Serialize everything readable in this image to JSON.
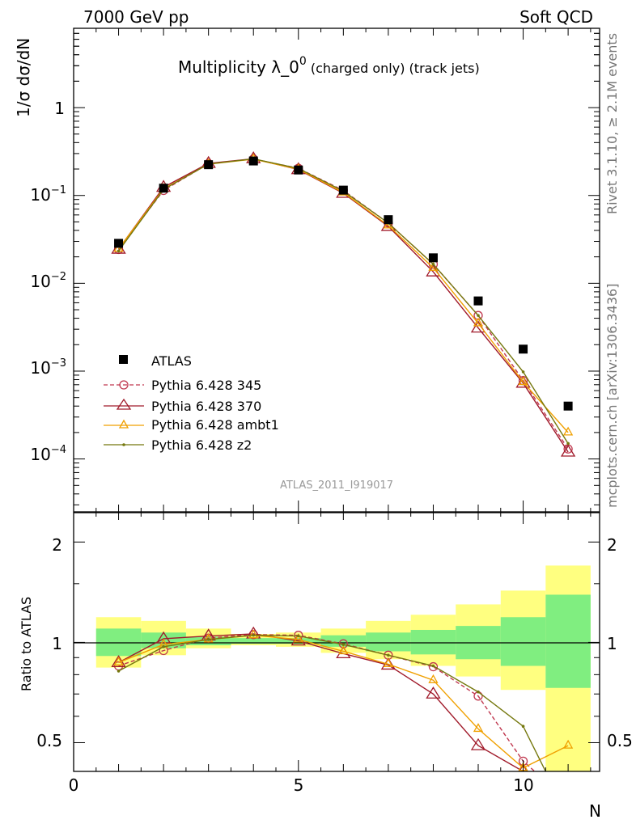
{
  "header": {
    "left": "7000 GeV pp",
    "right": "Soft QCD"
  },
  "title": {
    "main": "Multiplicity λ_0",
    "sup": "0",
    "sub": " (charged only) (track jets)"
  },
  "side_labels": {
    "rivet": "Rivet 3.1.10, ≥ 2.1M events",
    "mcplots": "mcplots.cern.ch [arXiv:1306.3436]"
  },
  "watermark": "ATLAS_2011_I919017",
  "legend_entries": [
    "ATLAS",
    "Pythia 6.428 345",
    "Pythia 6.428 370",
    "Pythia 6.428 ambt1",
    "Pythia 6.428 z2"
  ],
  "axis_labels": {
    "x": "N",
    "y_top": "1/σ dσ/dN",
    "y_bottom": "Ratio to ATLAS"
  },
  "x_tick_labels": [
    "0",
    "5",
    "10"
  ],
  "y_top_tick_labels": [
    {
      "base": "1",
      "exp": ""
    },
    {
      "base": "10",
      "exp": "−1"
    },
    {
      "base": "10",
      "exp": "−2"
    },
    {
      "base": "10",
      "exp": "−3"
    },
    {
      "base": "10",
      "exp": "−4"
    }
  ],
  "y_bottom_tick_labels": [
    "2",
    "1",
    "0.5"
  ],
  "chart_data": {
    "type": "line",
    "x_range": [
      0,
      11.7
    ],
    "top_panel": {
      "y_scale": "log",
      "y_range": [
        2.5e-05,
        8
      ],
      "atlas": {
        "x": [
          1,
          2,
          3,
          4,
          5,
          6,
          7,
          8,
          9,
          10,
          11
        ],
        "y": [
          0.0285,
          0.121,
          0.224,
          0.247,
          0.195,
          0.115,
          0.053,
          0.0195,
          0.0063,
          0.00178,
          0.0004
        ]
      },
      "series": [
        {
          "name": "Pythia 6.428 345",
          "color": "#c0384f",
          "marker": "circle",
          "dash": "dashed",
          "x": [
            1,
            2,
            3,
            4,
            5,
            6,
            7,
            8,
            9,
            10,
            11
          ],
          "y": [
            0.0243,
            0.114,
            0.23,
            0.26,
            0.204,
            0.114,
            0.0485,
            0.0165,
            0.0043,
            0.00078,
            0.00013
          ]
        },
        {
          "name": "Pythia 6.428 370",
          "color": "#a01a2a",
          "marker": "triangle",
          "dash": "solid",
          "x": [
            1,
            2,
            3,
            4,
            5,
            6,
            7,
            8,
            9,
            10,
            11
          ],
          "y": [
            0.0245,
            0.124,
            0.232,
            0.262,
            0.197,
            0.106,
            0.0445,
            0.0135,
            0.0031,
            0.00073,
            0.00012
          ]
        },
        {
          "name": "Pythia 6.428 ambt1",
          "color": "#f0a000",
          "marker": "triangle-small",
          "dash": "solid",
          "x": [
            1,
            2,
            3,
            4,
            5,
            6,
            7,
            8,
            9,
            10,
            11
          ],
          "y": [
            0.0247,
            0.119,
            0.227,
            0.259,
            0.199,
            0.108,
            0.0455,
            0.015,
            0.0035,
            0.00075,
            0.0002
          ]
        },
        {
          "name": "Pythia 6.428 z2",
          "color": "#75780e",
          "marker": "dot",
          "dash": "solid",
          "x": [
            1,
            2,
            3,
            4,
            5,
            6,
            7,
            8,
            9,
            10,
            11
          ],
          "y": [
            0.0233,
            0.117,
            0.228,
            0.261,
            0.203,
            0.112,
            0.0485,
            0.0165,
            0.0043,
            0.00098,
            0.00015
          ]
        }
      ]
    },
    "bottom_panel": {
      "y_scale": "log",
      "y_range": [
        0.41,
        2.45
      ],
      "reference_line": 1,
      "green_band": [
        {
          "x0": 0.5,
          "x1": 1.5,
          "lo": 0.91,
          "hi": 1.1
        },
        {
          "x0": 1.5,
          "x1": 2.5,
          "lo": 0.96,
          "hi": 1.07
        },
        {
          "x0": 2.5,
          "x1": 3.5,
          "lo": 0.98,
          "hi": 1.04
        },
        {
          "x0": 3.5,
          "x1": 4.5,
          "lo": 0.99,
          "hi": 1.03
        },
        {
          "x0": 4.5,
          "x1": 5.5,
          "lo": 0.99,
          "hi": 1.03
        },
        {
          "x0": 5.5,
          "x1": 6.5,
          "lo": 0.97,
          "hi": 1.05
        },
        {
          "x0": 6.5,
          "x1": 7.5,
          "lo": 0.94,
          "hi": 1.07
        },
        {
          "x0": 7.5,
          "x1": 8.5,
          "lo": 0.92,
          "hi": 1.09
        },
        {
          "x0": 8.5,
          "x1": 9.5,
          "lo": 0.89,
          "hi": 1.12
        },
        {
          "x0": 9.5,
          "x1": 10.5,
          "lo": 0.85,
          "hi": 1.19
        },
        {
          "x0": 10.5,
          "x1": 11.5,
          "lo": 0.73,
          "hi": 1.39
        }
      ],
      "yellow_band": [
        {
          "x0": 0.5,
          "x1": 1.5,
          "lo": 0.84,
          "hi": 1.19
        },
        {
          "x0": 1.5,
          "x1": 2.5,
          "lo": 0.915,
          "hi": 1.16
        },
        {
          "x0": 2.5,
          "x1": 3.5,
          "lo": 0.96,
          "hi": 1.1
        },
        {
          "x0": 3.5,
          "x1": 4.5,
          "lo": 0.98,
          "hi": 1.06
        },
        {
          "x0": 4.5,
          "x1": 5.5,
          "lo": 0.97,
          "hi": 1.07
        },
        {
          "x0": 5.5,
          "x1": 6.5,
          "lo": 0.93,
          "hi": 1.1
        },
        {
          "x0": 6.5,
          "x1": 7.5,
          "lo": 0.89,
          "hi": 1.16
        },
        {
          "x0": 7.5,
          "x1": 8.5,
          "lo": 0.85,
          "hi": 1.21
        },
        {
          "x0": 8.5,
          "x1": 9.5,
          "lo": 0.79,
          "hi": 1.3
        },
        {
          "x0": 9.5,
          "x1": 10.5,
          "lo": 0.72,
          "hi": 1.43
        },
        {
          "x0": 10.5,
          "x1": 11.5,
          "lo": 0.41,
          "hi": 1.7
        }
      ],
      "series": [
        {
          "name": "Pythia 6.428 345",
          "color": "#c0384f",
          "marker": "circle",
          "dash": "dashed",
          "x": [
            1,
            2,
            3,
            4,
            5,
            6,
            7,
            8,
            9,
            10,
            11.05
          ],
          "y": [
            0.85,
            0.945,
            1.03,
            1.055,
            1.05,
            0.99,
            0.915,
            0.845,
            0.69,
            0.44,
            0.33
          ]
        },
        {
          "name": "Pythia 6.428 370",
          "color": "#a01a2a",
          "marker": "triangle",
          "dash": "solid",
          "x": [
            1,
            2,
            3,
            4,
            5,
            6,
            7,
            8,
            9,
            10,
            10.45
          ],
          "y": [
            0.87,
            1.025,
            1.045,
            1.06,
            1.01,
            0.925,
            0.855,
            0.7,
            0.49,
            0.41,
            0.34
          ]
        },
        {
          "name": "Pythia 6.428 ambt1",
          "color": "#f0a000",
          "marker": "triangle-small",
          "dash": "solid",
          "x": [
            1,
            2,
            3,
            4,
            5,
            6,
            7,
            8,
            9,
            10,
            11
          ],
          "y": [
            0.87,
            0.985,
            1.02,
            1.05,
            1.02,
            0.94,
            0.86,
            0.77,
            0.55,
            0.42,
            0.49
          ]
        },
        {
          "name": "Pythia 6.428 z2",
          "color": "#75780e",
          "marker": "dot",
          "dash": "solid",
          "x": [
            1,
            2,
            3,
            4,
            5,
            6,
            7,
            8,
            9,
            10,
            10.8
          ],
          "y": [
            0.82,
            0.97,
            1.02,
            1.05,
            1.045,
            0.985,
            0.915,
            0.85,
            0.71,
            0.56,
            0.34
          ]
        }
      ]
    }
  }
}
